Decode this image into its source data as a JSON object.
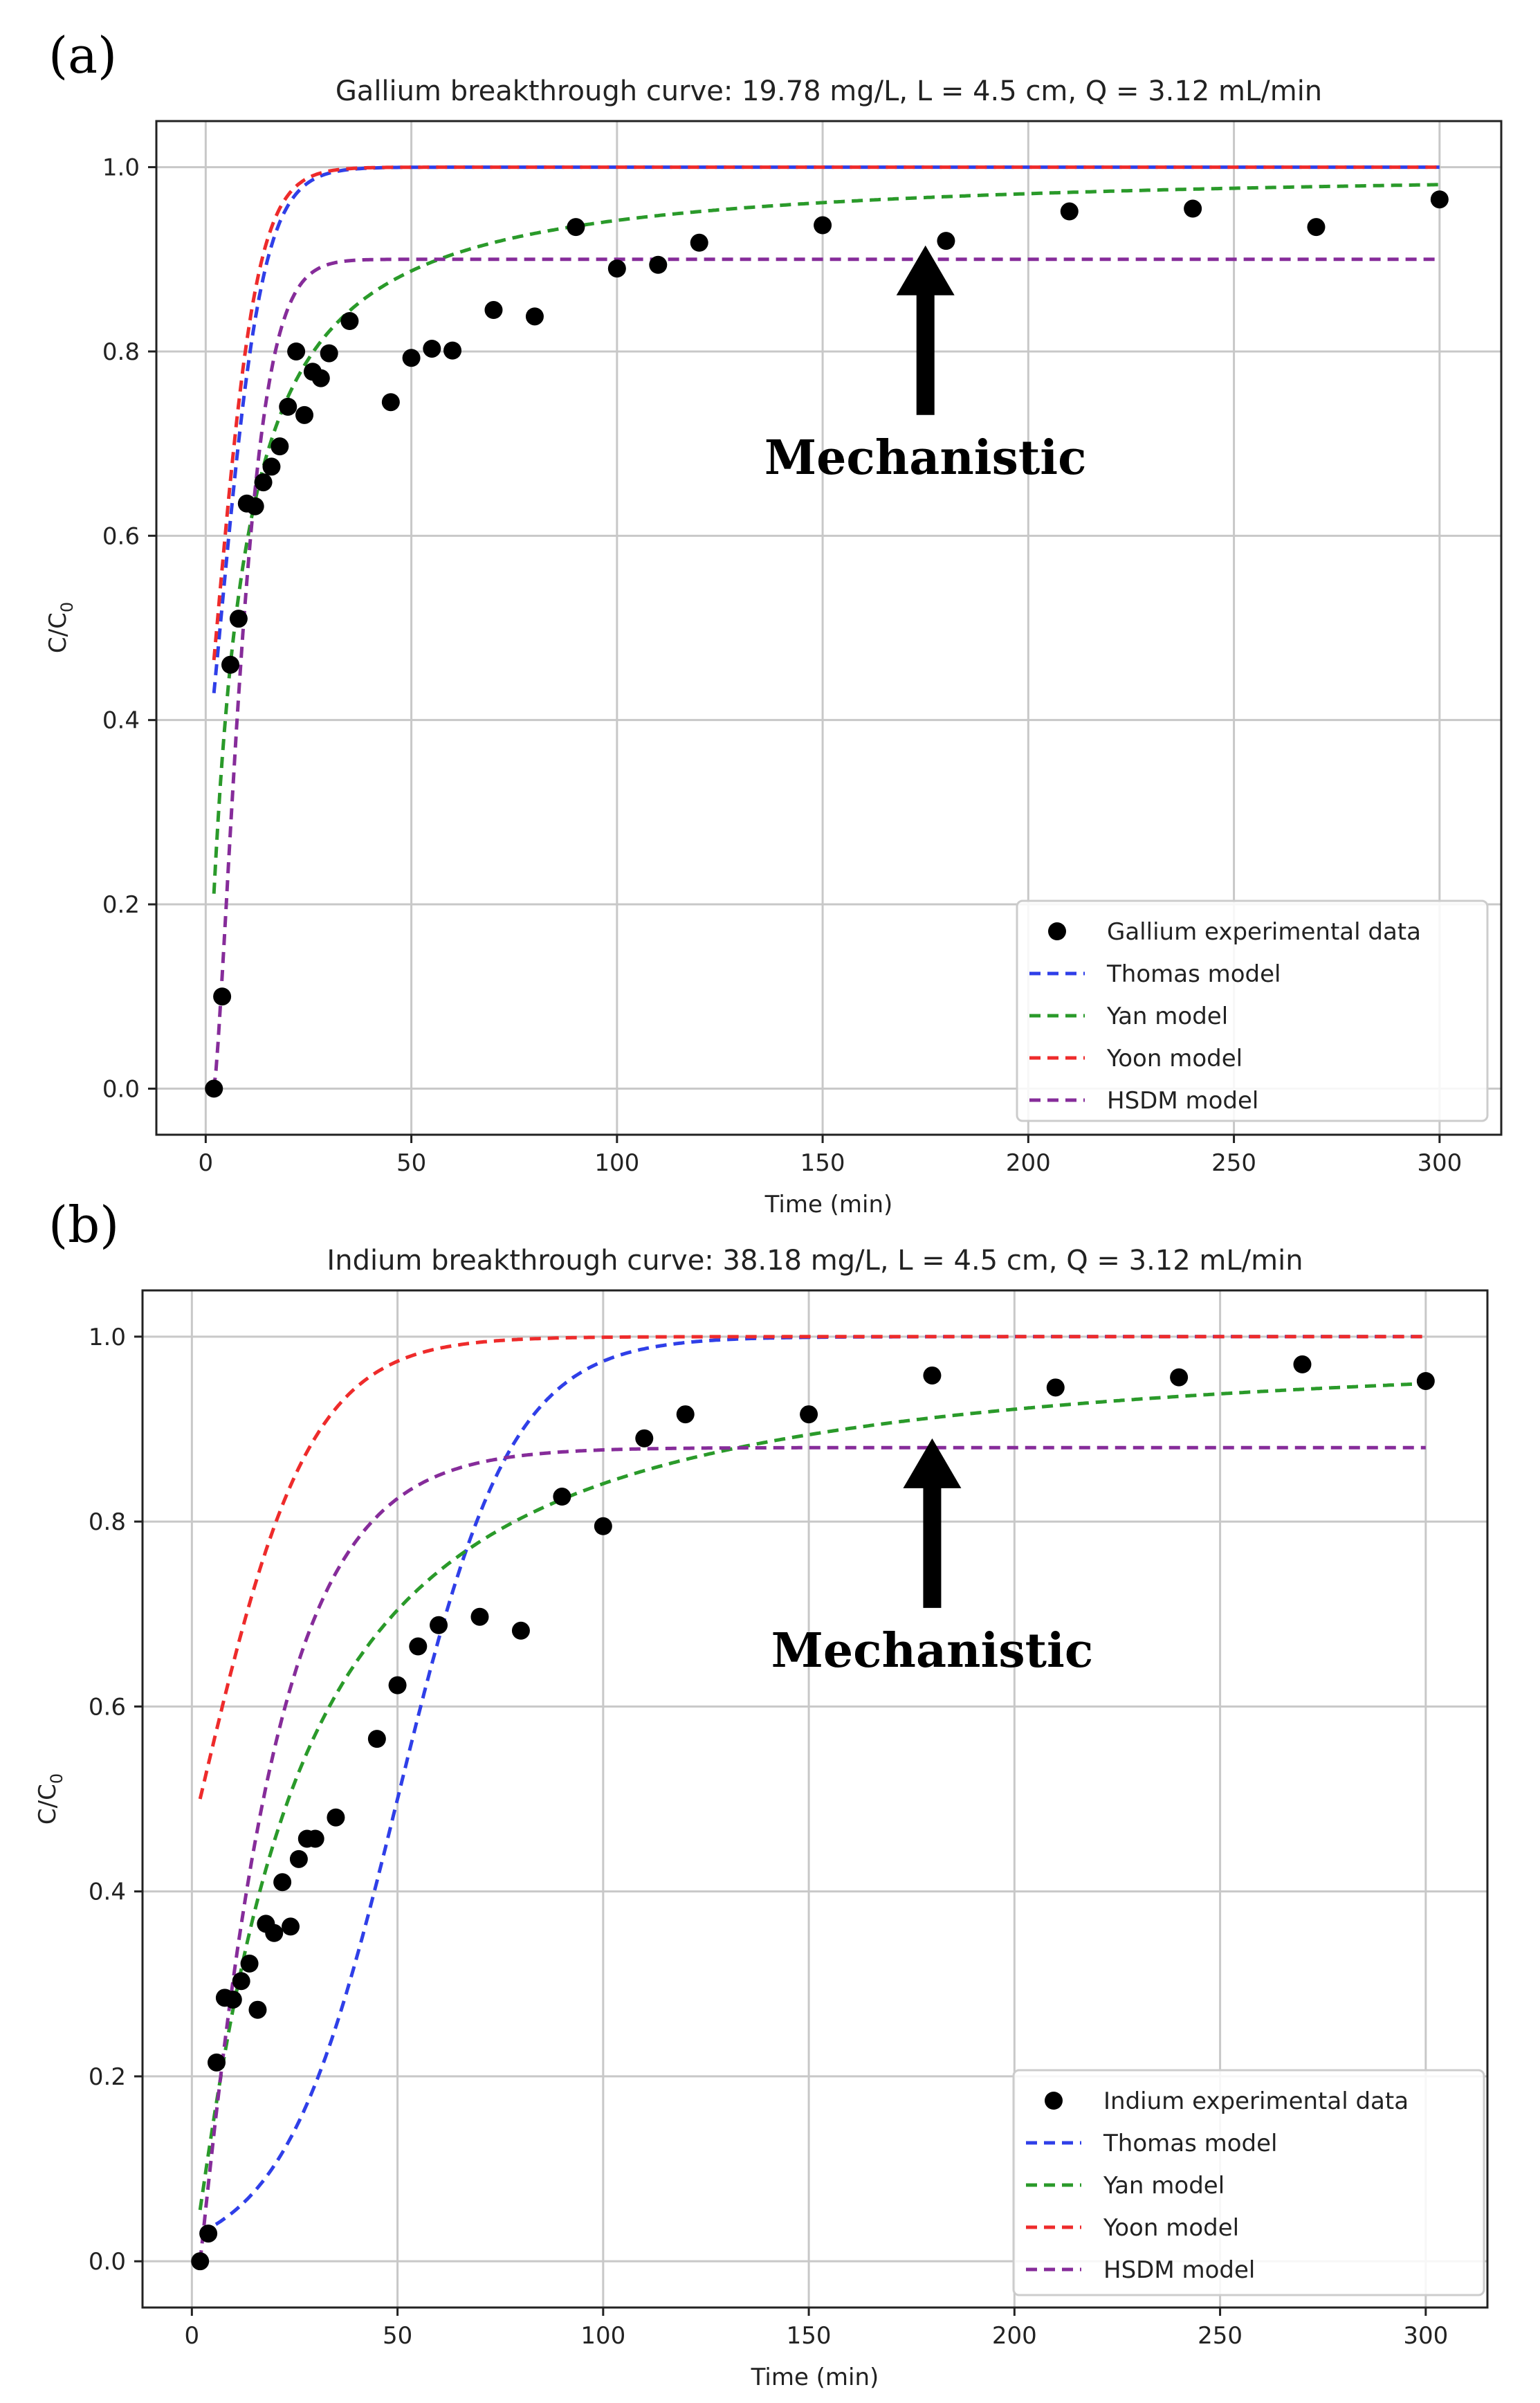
{
  "chart_data": [
    {
      "panel_label": "(a)",
      "type": "scatter",
      "title": "Gallium breakthrough curve: 19.78 mg/L, L = 4.5 cm, Q = 3.12 mL/min",
      "xlabel": "Time (min)",
      "ylabel": "C/C",
      "ylabel_sub": "0",
      "xlim": [
        -12,
        315
      ],
      "ylim": [
        -0.05,
        1.05
      ],
      "xticks": [
        0,
        50,
        100,
        150,
        200,
        250,
        300
      ],
      "yticks": [
        0.0,
        0.2,
        0.4,
        0.6,
        0.8,
        1.0
      ],
      "grid": true,
      "legend_position": "lower-right",
      "experimental": {
        "name": "Gallium experimental data",
        "color": "#000000",
        "x": [
          2,
          4,
          6,
          8,
          10,
          12,
          14,
          16,
          18,
          20,
          22,
          24,
          26,
          28,
          30,
          35,
          45,
          50,
          55,
          60,
          70,
          80,
          90,
          100,
          110,
          120,
          150,
          180,
          210,
          240,
          270,
          300
        ],
        "y": [
          0.0,
          0.1,
          0.46,
          0.51,
          0.635,
          0.632,
          0.658,
          0.675,
          0.697,
          0.74,
          0.8,
          0.731,
          0.778,
          0.771,
          0.798,
          0.833,
          0.745,
          0.793,
          0.803,
          0.801,
          0.845,
          0.838,
          0.935,
          0.89,
          0.894,
          0.918,
          0.937,
          0.92,
          0.952,
          0.955,
          0.935,
          0.965
        ]
      },
      "series": [
        {
          "name": "Thomas model",
          "color": "#2f3fe8",
          "model": "logistic",
          "params": {
            "a": 0.0,
            "k": 0.19,
            "t0": 3.5
          }
        },
        {
          "name": "Yan model",
          "color": "#2a9a2a",
          "model": "yan",
          "params": {
            "b": 7.0,
            "n": 1.05
          }
        },
        {
          "name": "Yoon model",
          "color": "#ee2b2b",
          "model": "logistic",
          "params": {
            "a": 0.0,
            "k": 0.2,
            "t0": 2.7
          }
        },
        {
          "name": "HSDM model",
          "color": "#862c9a",
          "model": "hsdm",
          "params": {
            "cmax": 0.9,
            "t0": 2.0,
            "a": 0.12,
            "n": 1.35
          }
        }
      ],
      "x_start": 2,
      "x_end": 300,
      "annotation": "Mechanistic",
      "annotation_arrow_x": 175,
      "annotation_arrow_y": 0.915
    },
    {
      "panel_label": "(b)",
      "type": "scatter",
      "title": "Indium breakthrough curve: 38.18 mg/L, L = 4.5 cm, Q = 3.12 mL/min",
      "xlabel": "Time (min)",
      "ylabel": "C/C",
      "ylabel_sub": "0",
      "xlim": [
        -12,
        315
      ],
      "ylim": [
        -0.05,
        1.05
      ],
      "xticks": [
        0,
        50,
        100,
        150,
        200,
        250,
        300
      ],
      "yticks": [
        0.0,
        0.2,
        0.4,
        0.6,
        0.8,
        1.0
      ],
      "grid": true,
      "legend_position": "lower-right",
      "experimental": {
        "name": "Indium experimental data",
        "color": "#000000",
        "x": [
          2,
          4,
          6,
          8,
          10,
          12,
          14,
          16,
          18,
          20,
          22,
          24,
          26,
          28,
          30,
          35,
          45,
          50,
          55,
          60,
          70,
          80,
          90,
          100,
          110,
          120,
          150,
          180,
          210,
          240,
          270,
          300
        ],
        "y": [
          0.0,
          0.03,
          0.215,
          0.285,
          0.283,
          0.303,
          0.322,
          0.272,
          0.365,
          0.355,
          0.41,
          0.362,
          0.435,
          0.457,
          0.457,
          0.48,
          0.565,
          0.623,
          0.665,
          0.688,
          0.697,
          0.682,
          0.827,
          0.795,
          0.89,
          0.916,
          0.916,
          0.958,
          0.945,
          0.956,
          0.97,
          0.952
        ]
      },
      "series": [
        {
          "name": "Thomas model",
          "color": "#2f3fe8",
          "model": "logistic",
          "params": {
            "a": 0.0,
            "k": 0.072,
            "t0": 50.0
          }
        },
        {
          "name": "Yan model",
          "color": "#2a9a2a",
          "model": "yan",
          "params": {
            "b": 23.5,
            "n": 1.15
          }
        },
        {
          "name": "Yoon model",
          "color": "#ee2b2b",
          "model": "logistic",
          "params": {
            "a": 0.0,
            "k": 0.075,
            "t0": 2.0
          }
        },
        {
          "name": "HSDM model",
          "color": "#862c9a",
          "model": "hsdm",
          "params": {
            "cmax": 0.88,
            "t0": 2.0,
            "a": 0.055,
            "n": 1.05
          }
        }
      ],
      "x_start": 2,
      "x_end": 300,
      "annotation": "Mechanistic",
      "annotation_arrow_x": 180,
      "annotation_arrow_y": 0.89
    }
  ]
}
